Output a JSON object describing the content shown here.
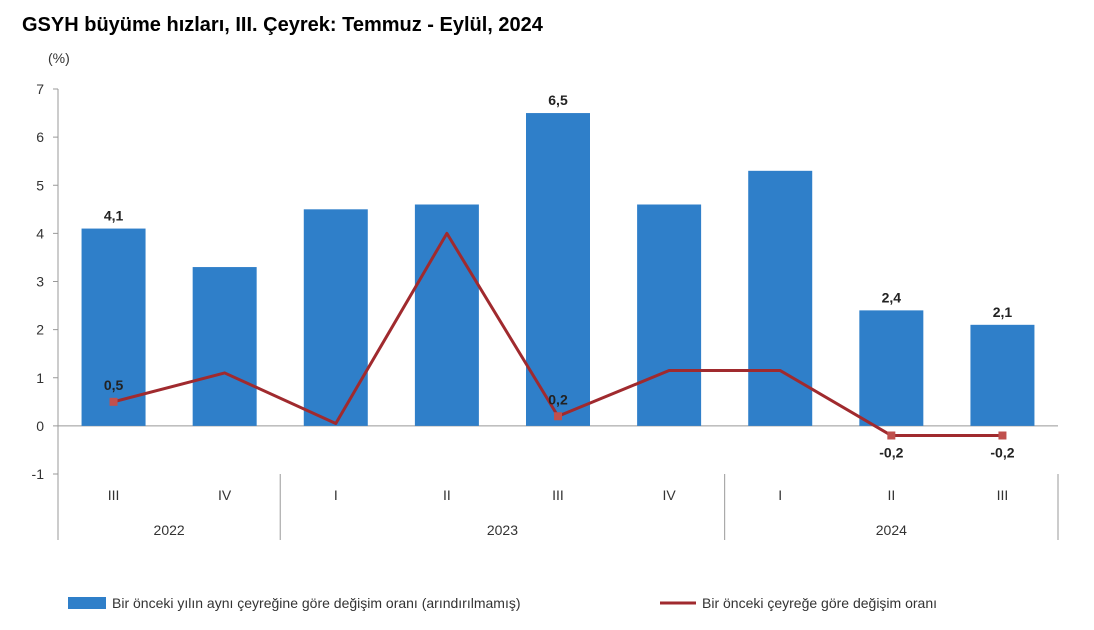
{
  "title": "GSYH büyüme hızları, III. Çeyrek: Temmuz - Eylül, 2024",
  "colors": {
    "bar": "#2f7fc9",
    "line": "#a02a2e",
    "axis": "#999999"
  },
  "chart_data": {
    "type": "bar",
    "title": "GSYH büyüme hızları, III. Çeyrek: Temmuz - Eylül, 2024",
    "ylabel": "(%)",
    "xlabel": "",
    "ylim": [
      -1,
      7
    ],
    "yticks": [
      7,
      6,
      5,
      4,
      3,
      2,
      1,
      0,
      -1
    ],
    "categories": [
      "III",
      "IV",
      "I",
      "II",
      "III",
      "IV",
      "I",
      "II",
      "III"
    ],
    "groups": [
      {
        "label": "2022",
        "count": 2
      },
      {
        "label": "2023",
        "count": 4
      },
      {
        "label": "2024",
        "count": 3
      }
    ],
    "series": [
      {
        "name": "Bir önceki yılın aynı çeyreğine göre değişim oranı (arındırılmamış)",
        "type": "bar",
        "values": [
          4.1,
          3.3,
          4.5,
          4.6,
          6.5,
          4.6,
          5.3,
          2.4,
          2.1
        ],
        "labels": [
          "4,1",
          "",
          "",
          "",
          "6,5",
          "",
          "",
          "2,4",
          "2,1"
        ]
      },
      {
        "name": "Bir önceki çeyreğe göre değişim oranı",
        "type": "line",
        "values": [
          0.5,
          1.1,
          0.05,
          4.0,
          0.2,
          1.15,
          1.15,
          -0.2,
          -0.2
        ],
        "labels": [
          "0,5",
          "",
          "",
          "",
          "0,2",
          "",
          "",
          "-0,2",
          "-0,2"
        ]
      }
    ],
    "legend_position": "bottom"
  }
}
